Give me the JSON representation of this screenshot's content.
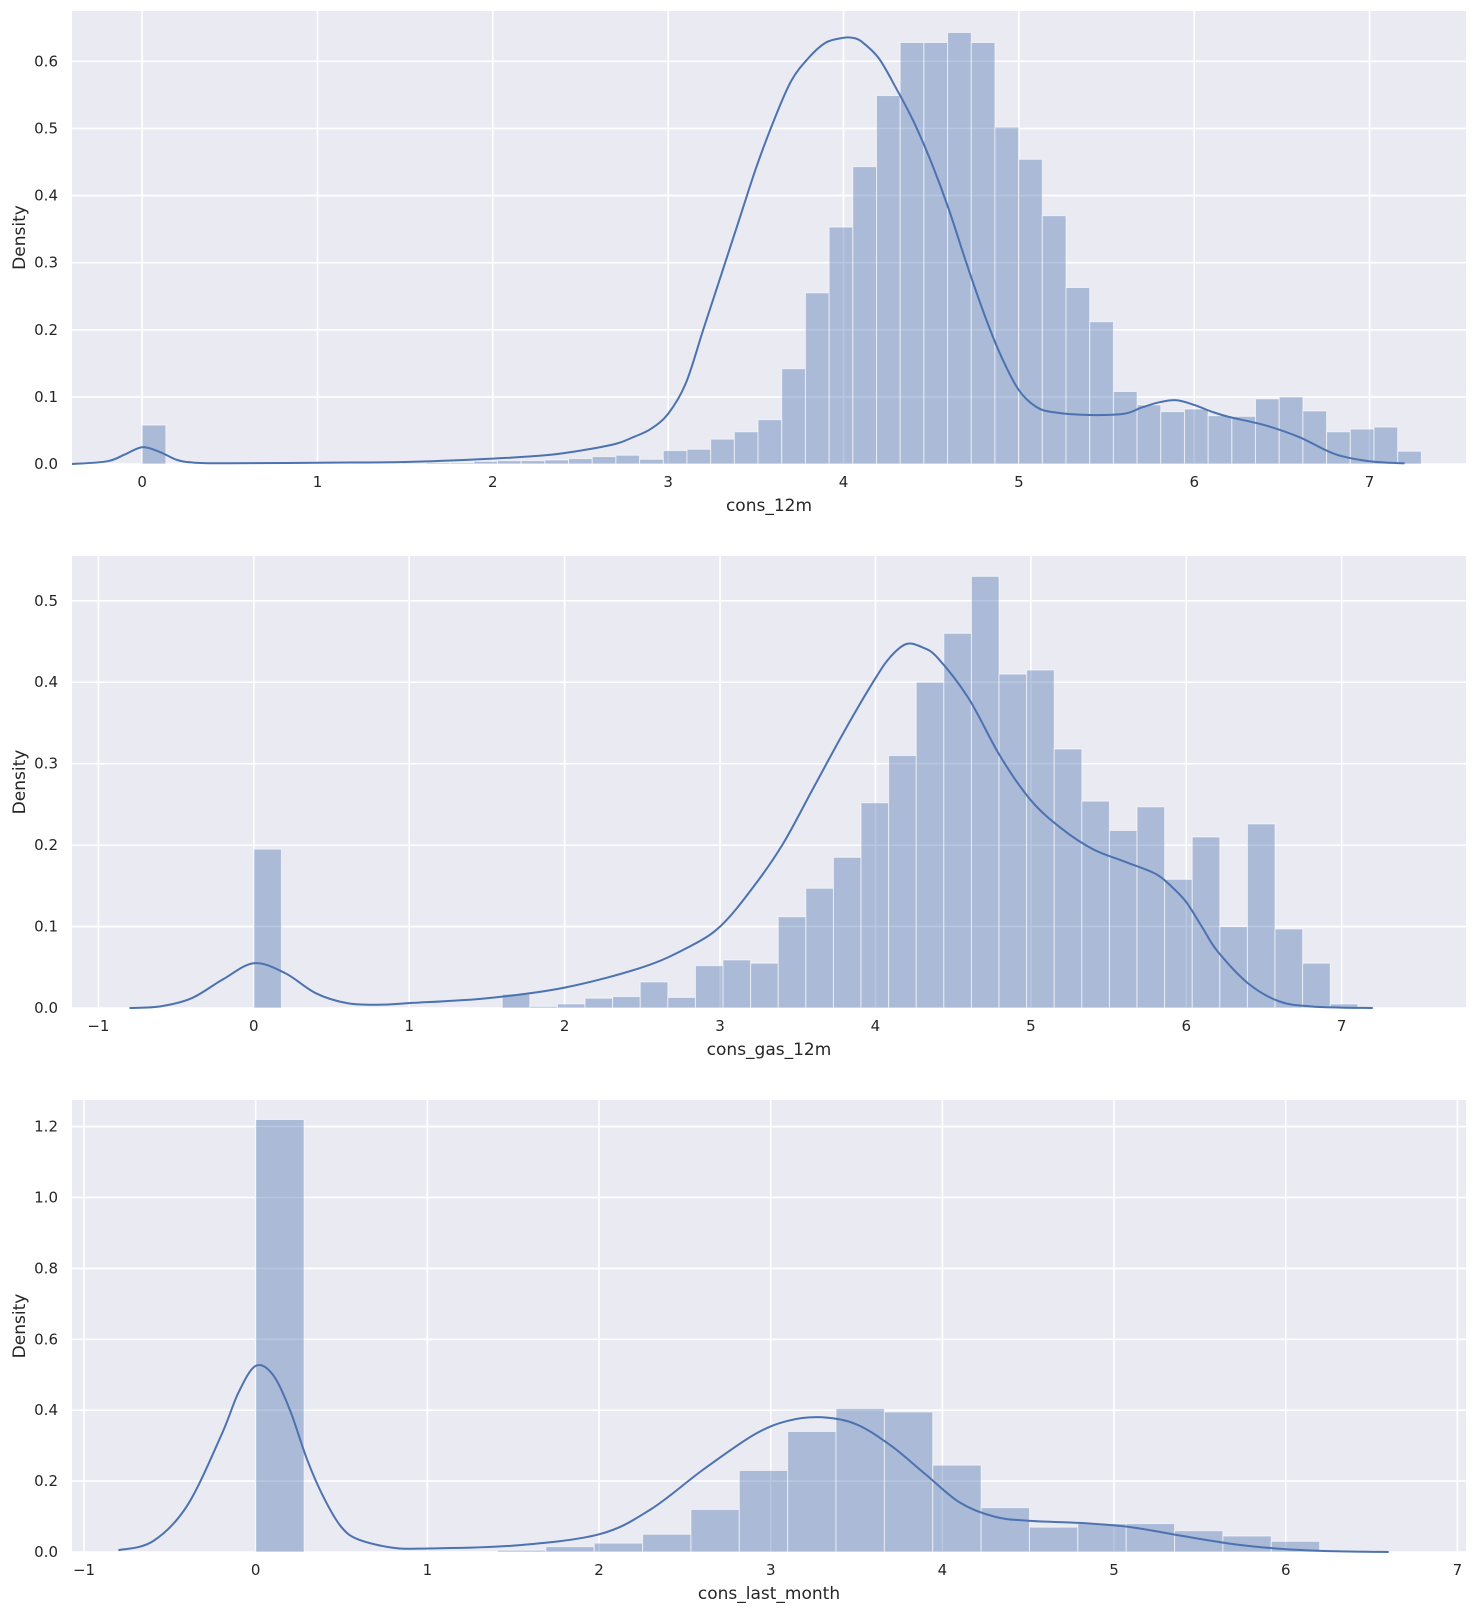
{
  "chart_data": [
    {
      "type": "histogram",
      "xlabel": "cons_12m",
      "ylabel": "Density",
      "xlim": [
        -0.4,
        7.55
      ],
      "ylim": [
        0,
        0.675
      ],
      "xticks": [
        0,
        1,
        2,
        3,
        4,
        5,
        6,
        7
      ],
      "yticks": [
        0.0,
        0.1,
        0.2,
        0.3,
        0.4,
        0.5,
        0.6
      ],
      "grid": true,
      "bar_color": "#4c72b0",
      "bins": {
        "start": 0,
        "width": 0.1351,
        "values": [
          0.058,
          0,
          0,
          0,
          0,
          0,
          0,
          0,
          0,
          0,
          0,
          0.001,
          0.002,
          0.002,
          0.004,
          0.005,
          0.005,
          0.006,
          0.008,
          0.011,
          0.013,
          0.007,
          0.02,
          0.022,
          0.037,
          0.048,
          0.066,
          0.142,
          0.255,
          0.353,
          0.443,
          0.549,
          0.628,
          0.628,
          0.643,
          0.628,
          0.502,
          0.454,
          0.37,
          0.263,
          0.212,
          0.108,
          0.088,
          0.078,
          0.082,
          0.072,
          0.071,
          0.097,
          0.1,
          0.079,
          0.048,
          0.052,
          0.055,
          0.019
        ]
      },
      "kde": {
        "x": [
          -0.4,
          -0.2,
          -0.1,
          0,
          0.1,
          0.2,
          0.3,
          0.5,
          1,
          1.5,
          2,
          2.3,
          2.5,
          2.7,
          2.8,
          2.9,
          3,
          3.1,
          3.2,
          3.3,
          3.4,
          3.5,
          3.6,
          3.7,
          3.8,
          3.9,
          4,
          4.05,
          4.1,
          4.2,
          4.3,
          4.4,
          4.5,
          4.6,
          4.7,
          4.8,
          4.9,
          5,
          5.1,
          5.2,
          5.4,
          5.6,
          5.7,
          5.8,
          5.9,
          6,
          6.1,
          6.2,
          6.4,
          6.6,
          6.8,
          7,
          7.2
        ],
        "y": [
          0,
          0.004,
          0.014,
          0.025,
          0.018,
          0.006,
          0.002,
          0.001,
          0.002,
          0.003,
          0.008,
          0.013,
          0.02,
          0.03,
          0.04,
          0.052,
          0.075,
          0.12,
          0.2,
          0.28,
          0.36,
          0.44,
          0.51,
          0.57,
          0.605,
          0.628,
          0.635,
          0.635,
          0.63,
          0.605,
          0.56,
          0.51,
          0.45,
          0.38,
          0.3,
          0.225,
          0.16,
          0.11,
          0.085,
          0.077,
          0.073,
          0.075,
          0.084,
          0.092,
          0.095,
          0.088,
          0.078,
          0.07,
          0.058,
          0.04,
          0.015,
          0.004,
          0.001
        ]
      }
    },
    {
      "type": "histogram",
      "xlabel": "cons_gas_12m",
      "ylabel": "Density",
      "xlim": [
        -1.17,
        7.8
      ],
      "ylim": [
        0,
        0.555
      ],
      "xticks": [
        -1,
        0,
        1,
        2,
        3,
        4,
        5,
        6,
        7
      ],
      "yticks": [
        0.0,
        0.1,
        0.2,
        0.3,
        0.4,
        0.5
      ],
      "grid": true,
      "bar_color": "#4c72b0",
      "bins": {
        "start": 0,
        "width": 0.1776,
        "values": [
          0.195,
          0,
          0,
          0,
          0,
          0,
          0,
          0,
          0,
          0.017,
          0.002,
          0.005,
          0.012,
          0.014,
          0.032,
          0.013,
          0.052,
          0.059,
          0.055,
          0.112,
          0.147,
          0.185,
          0.252,
          0.31,
          0.4,
          0.46,
          0.53,
          0.41,
          0.415,
          0.318,
          0.254,
          0.218,
          0.247,
          0.158,
          0.21,
          0.1,
          0.226,
          0.097,
          0.055,
          0.005
        ]
      },
      "kde": {
        "x": [
          -0.8,
          -0.6,
          -0.4,
          -0.2,
          0,
          0.2,
          0.4,
          0.6,
          0.8,
          1,
          1.5,
          2,
          2.5,
          2.8,
          3,
          3.2,
          3.4,
          3.6,
          3.8,
          4,
          4.1,
          4.2,
          4.3,
          4.4,
          4.6,
          4.8,
          5,
          5.2,
          5.4,
          5.6,
          5.8,
          5.9,
          6,
          6.1,
          6.2,
          6.4,
          6.6,
          6.8,
          7,
          7.2
        ],
        "y": [
          0,
          0.002,
          0.012,
          0.035,
          0.055,
          0.043,
          0.018,
          0.006,
          0.004,
          0.006,
          0.012,
          0.025,
          0.05,
          0.075,
          0.1,
          0.145,
          0.2,
          0.27,
          0.34,
          0.405,
          0.432,
          0.447,
          0.443,
          0.43,
          0.38,
          0.31,
          0.255,
          0.22,
          0.195,
          0.18,
          0.165,
          0.15,
          0.13,
          0.1,
          0.07,
          0.03,
          0.008,
          0.002,
          0.0005,
          0
        ]
      }
    },
    {
      "type": "histogram",
      "xlabel": "cons_last_month",
      "ylabel": "Density",
      "xlim": [
        -1.07,
        7.05
      ],
      "ylim": [
        0,
        1.275
      ],
      "xticks": [
        -1,
        0,
        1,
        2,
        3,
        4,
        5,
        6,
        7
      ],
      "yticks": [
        0.0,
        0.2,
        0.4,
        0.6,
        0.8,
        1.0,
        1.2
      ],
      "grid": true,
      "bar_color": "#4c72b0",
      "bins": {
        "start": 0,
        "width": 0.2817,
        "values": [
          1.22,
          0,
          0,
          0,
          0,
          0.005,
          0.015,
          0.025,
          0.05,
          0.12,
          0.23,
          0.34,
          0.405,
          0.395,
          0.245,
          0.125,
          0.07,
          0.08,
          0.08,
          0.06,
          0.045,
          0.03
        ]
      },
      "kde": {
        "x": [
          -0.8,
          -0.6,
          -0.4,
          -0.2,
          -0.1,
          0,
          0.1,
          0.2,
          0.3,
          0.4,
          0.5,
          0.6,
          0.8,
          1,
          1.5,
          2,
          2.3,
          2.6,
          2.9,
          3.1,
          3.3,
          3.5,
          3.7,
          3.9,
          4.1,
          4.3,
          4.5,
          4.8,
          5.1,
          5.4,
          5.7,
          6,
          6.3,
          6.6
        ],
        "y": [
          0.005,
          0.03,
          0.13,
          0.33,
          0.45,
          0.525,
          0.5,
          0.4,
          0.26,
          0.15,
          0.07,
          0.035,
          0.012,
          0.01,
          0.018,
          0.05,
          0.12,
          0.23,
          0.33,
          0.37,
          0.38,
          0.36,
          0.3,
          0.22,
          0.14,
          0.1,
          0.088,
          0.082,
          0.07,
          0.045,
          0.022,
          0.008,
          0.002,
          0
        ]
      }
    }
  ]
}
